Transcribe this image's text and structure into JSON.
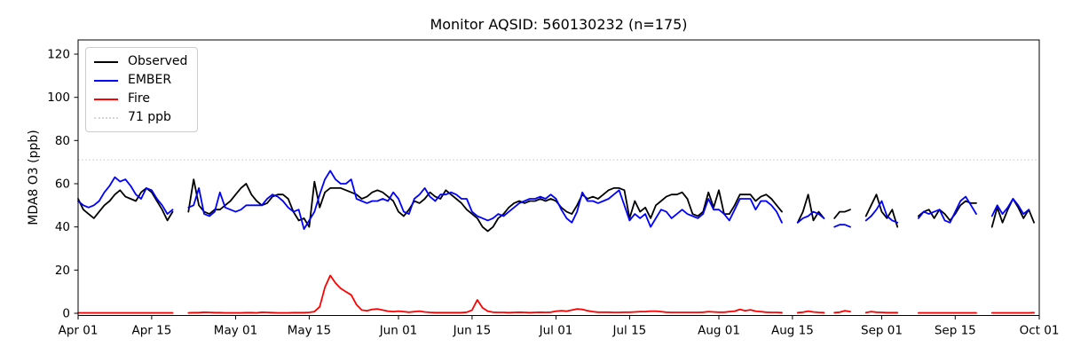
{
  "title": "Monitor AQSID: 560130232 (n=175)",
  "legend": [
    {
      "label": "Observed",
      "color": "#000000",
      "dash": "solid"
    },
    {
      "label": "EMBER",
      "color": "#0000ff",
      "dash": "solid"
    },
    {
      "label": "Fire",
      "color": "#ff0000",
      "dash": "solid"
    },
    {
      "label": "71 ppb",
      "color": "#d3d3d3",
      "dash": "dotted"
    }
  ],
  "chart_data": {
    "type": "line",
    "title": "Monitor AQSID: 560130232 (n=175)",
    "ylabel": "MDA8 O3 (ppb)",
    "xlabel": "",
    "grid": false,
    "legend_position": "upper-left",
    "x_unit": "day index from Apr 01",
    "n_days": 183,
    "ylim": [
      -1,
      127
    ],
    "y_ticks": [
      0,
      20,
      40,
      60,
      80,
      100,
      120
    ],
    "x_ticks": [
      {
        "label": "Apr 01",
        "day": 0
      },
      {
        "label": "Apr 15",
        "day": 14
      },
      {
        "label": "May 01",
        "day": 30
      },
      {
        "label": "May 15",
        "day": 44
      },
      {
        "label": "Jun 01",
        "day": 61
      },
      {
        "label": "Jun 15",
        "day": 75
      },
      {
        "label": "Jul 01",
        "day": 91
      },
      {
        "label": "Jul 15",
        "day": 105
      },
      {
        "label": "Aug 01",
        "day": 122
      },
      {
        "label": "Aug 15",
        "day": 136
      },
      {
        "label": "Sep 01",
        "day": 153
      },
      {
        "label": "Sep 15",
        "day": 167
      },
      {
        "label": "Oct 01",
        "day": 183
      }
    ],
    "threshold": {
      "label": "71 ppb",
      "value": 71,
      "color": "#d3d3d3",
      "dash": "dotted"
    },
    "series": [
      {
        "name": "Observed",
        "color": "#000000",
        "values": [
          53,
          48,
          46,
          44,
          47,
          50,
          52,
          55,
          57,
          54,
          53,
          52,
          56,
          58,
          56,
          52,
          48,
          43,
          47,
          null,
          null,
          47,
          62,
          50,
          47,
          46,
          48,
          48,
          50,
          52,
          55,
          58,
          60,
          55,
          52,
          50,
          51,
          54,
          55,
          55,
          53,
          47,
          43,
          44,
          40,
          61,
          49,
          56,
          58,
          58,
          58,
          57,
          56,
          55,
          53,
          54,
          56,
          57,
          56,
          54,
          52,
          47,
          45,
          48,
          52,
          51,
          53,
          56,
          54,
          53,
          57,
          55,
          53,
          51,
          48,
          46,
          44,
          40,
          38,
          40,
          44,
          46,
          49,
          51,
          52,
          51,
          52,
          52,
          53,
          52,
          53,
          52,
          49,
          47,
          46,
          50,
          55,
          53,
          54,
          53,
          55,
          57,
          58,
          58,
          57,
          44,
          52,
          47,
          49,
          44,
          50,
          52,
          54,
          55,
          55,
          56,
          53,
          46,
          45,
          47,
          56,
          49,
          57,
          46,
          46,
          50,
          55,
          55,
          55,
          52,
          54,
          55,
          53,
          50,
          47,
          null,
          null,
          42,
          47,
          55,
          43,
          47,
          44,
          null,
          44,
          47,
          47,
          48,
          null,
          null,
          45,
          50,
          55,
          47,
          44,
          48,
          40,
          null,
          null,
          null,
          45,
          47,
          48,
          44,
          48,
          46,
          43,
          46,
          50,
          52,
          51,
          51,
          null,
          null,
          40,
          49,
          42,
          48,
          53,
          49,
          44,
          48,
          42
        ]
      },
      {
        "name": "EMBER",
        "color": "#0000ff",
        "values": [
          52,
          50,
          49,
          50,
          52,
          56,
          59,
          63,
          61,
          62,
          59,
          55,
          53,
          58,
          57,
          53,
          50,
          46,
          48,
          null,
          null,
          49,
          50,
          58,
          46,
          45,
          47,
          56,
          49,
          48,
          47,
          48,
          50,
          50,
          50,
          50,
          53,
          55,
          54,
          52,
          49,
          47,
          48,
          39,
          43,
          47,
          55,
          62,
          66,
          62,
          60,
          60,
          62,
          53,
          52,
          51,
          52,
          52,
          53,
          52,
          56,
          53,
          47,
          46,
          53,
          55,
          58,
          54,
          52,
          55,
          55,
          56,
          55,
          53,
          53,
          47,
          45,
          44,
          43,
          44,
          46,
          45,
          47,
          49,
          51,
          52,
          53,
          53,
          54,
          53,
          55,
          53,
          48,
          44,
          42,
          47,
          56,
          52,
          52,
          51,
          52,
          53,
          55,
          57,
          50,
          43,
          46,
          44,
          46,
          40,
          44,
          48,
          47,
          44,
          46,
          48,
          46,
          45,
          44,
          46,
          53,
          48,
          48,
          46,
          43,
          48,
          53,
          53,
          53,
          48,
          52,
          52,
          50,
          47,
          42,
          null,
          null,
          42,
          44,
          45,
          47,
          46,
          44,
          null,
          40,
          41,
          41,
          40,
          null,
          null,
          43,
          45,
          48,
          52,
          45,
          43,
          42,
          null,
          null,
          null,
          44,
          47,
          46,
          47,
          48,
          43,
          42,
          47,
          52,
          54,
          50,
          46,
          null,
          null,
          45,
          50,
          46,
          49,
          53,
          50,
          46,
          48,
          null
        ]
      },
      {
        "name": "Fire",
        "color": "#ff0000",
        "values": [
          0.2,
          0.2,
          0.2,
          0.2,
          0.2,
          0.2,
          0.2,
          0.2,
          0.2,
          0.2,
          0.2,
          0.2,
          0.2,
          0.2,
          0.2,
          0.2,
          0.2,
          0.2,
          0.2,
          null,
          null,
          0.2,
          0.3,
          0.3,
          0.5,
          0.4,
          0.3,
          0.3,
          0.2,
          0.2,
          0.2,
          0.2,
          0.3,
          0.3,
          0.2,
          0.5,
          0.4,
          0.3,
          0.2,
          0.2,
          0.2,
          0.3,
          0.3,
          0.3,
          0.4,
          0.8,
          3,
          12,
          17.5,
          14,
          11.5,
          10,
          8.5,
          4,
          1.5,
          1.2,
          1.8,
          2,
          1.5,
          1,
          0.8,
          1,
          0.8,
          0.5,
          0.8,
          1,
          0.6,
          0.4,
          0.3,
          0.3,
          0.3,
          0.3,
          0.3,
          0.3,
          0.5,
          1.5,
          6.2,
          2.5,
          1,
          0.5,
          0.4,
          0.4,
          0.3,
          0.4,
          0.5,
          0.4,
          0.3,
          0.4,
          0.5,
          0.4,
          0.5,
          1,
          1.2,
          1,
          1.5,
          2,
          1.8,
          1.2,
          0.8,
          0.5,
          0.5,
          0.5,
          0.4,
          0.4,
          0.5,
          0.5,
          0.6,
          0.8,
          0.8,
          1,
          1,
          0.8,
          0.5,
          0.4,
          0.4,
          0.4,
          0.4,
          0.4,
          0.4,
          0.5,
          0.8,
          0.6,
          0.5,
          0.5,
          0.8,
          1,
          1.8,
          1.2,
          1.6,
          1,
          0.8,
          0.5,
          0.4,
          0.4,
          0.3,
          null,
          null,
          0.3,
          0.5,
          1,
          0.6,
          0.4,
          0.3,
          null,
          0.3,
          0.5,
          1.2,
          0.8,
          null,
          null,
          0.3,
          0.8,
          0.5,
          0.4,
          0.3,
          0.3,
          0.3,
          null,
          null,
          null,
          0.2,
          0.2,
          0.2,
          0.2,
          0.2,
          0.2,
          0.2,
          0.2,
          0.2,
          0.2,
          0.2,
          0.2,
          null,
          null,
          0.2,
          0.2,
          0.2,
          0.2,
          0.2,
          0.2,
          0.2,
          0.2,
          0.3
        ]
      }
    ]
  }
}
